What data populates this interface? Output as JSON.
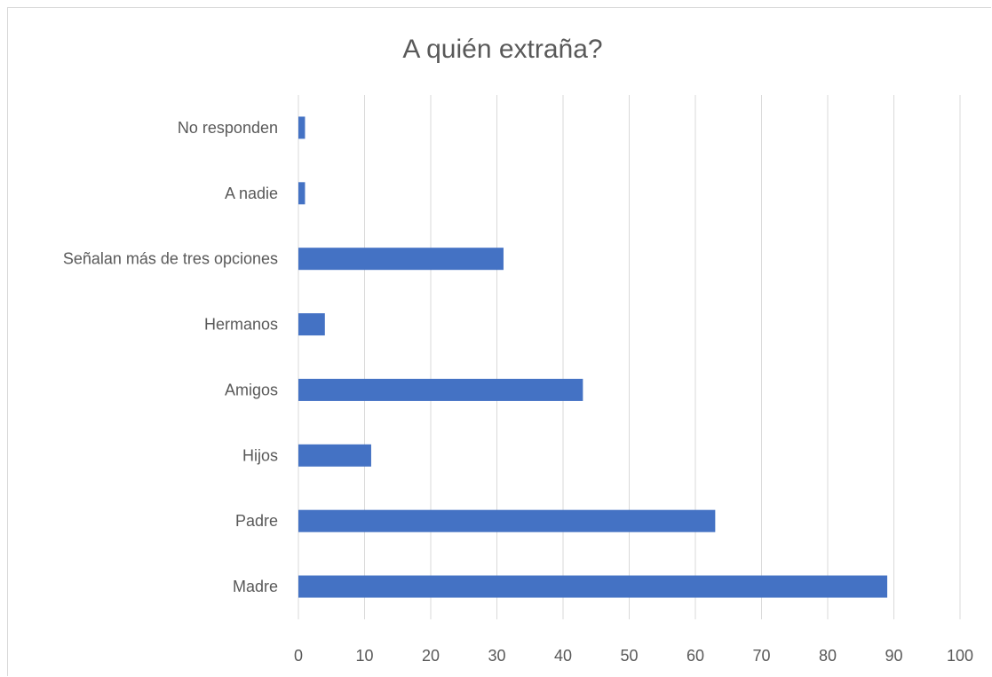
{
  "chart_data": {
    "type": "bar",
    "orientation": "horizontal",
    "title": "A quién extraña?",
    "categories": [
      "No responden",
      "A nadie",
      "Señalan más de tres opciones",
      "Hermanos",
      "Amigos",
      "Hijos",
      "Padre",
      "Madre"
    ],
    "values": [
      1,
      1,
      31,
      4,
      43,
      11,
      63,
      89
    ],
    "xlim": [
      0,
      100
    ],
    "xticks": [
      0,
      10,
      20,
      30,
      40,
      50,
      60,
      70,
      80,
      90,
      100
    ],
    "grid": "vertical",
    "legend": "none",
    "bar_color": "#4472c4"
  }
}
